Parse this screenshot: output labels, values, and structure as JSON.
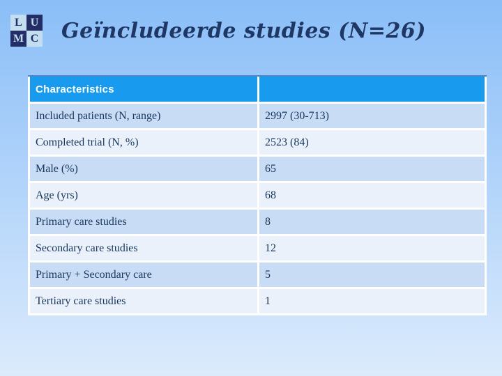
{
  "slide_title": "Geïncludeerde studies (N=26)",
  "logo": {
    "letters": [
      "L",
      "U",
      "M",
      "C"
    ]
  },
  "table": {
    "header": {
      "col1": "Characteristics",
      "col2": ""
    },
    "rows": [
      {
        "label": "Included patients (N, range)",
        "value": "2997 (30-713)"
      },
      {
        "label": "Completed trial (N, %)",
        "value": "2523 (84)"
      },
      {
        "label": "Male (%)",
        "value": "65"
      },
      {
        "label": "Age (yrs)",
        "value": "68"
      },
      {
        "label": "Primary care studies",
        "value": "8"
      },
      {
        "label": "Secondary care studies",
        "value": "12"
      },
      {
        "label": "Primary + Secondary care",
        "value": "5"
      },
      {
        "label": "Tertiary care studies",
        "value": "1"
      }
    ]
  },
  "colors": {
    "bg_top": "#8abef8",
    "bg_bottom": "#dcebfc",
    "header_bg": "#189bee",
    "header_text": "#ffffff",
    "row_odd_bg": "#c9dcf6",
    "row_even_bg": "#eaf1fb",
    "body_text": "#17365d",
    "title_text": "#1e3764",
    "grid_line": "#ffffff",
    "header_border": "#4d86c5",
    "logo_dark": "#232d66",
    "logo_light": "#c3def1"
  }
}
